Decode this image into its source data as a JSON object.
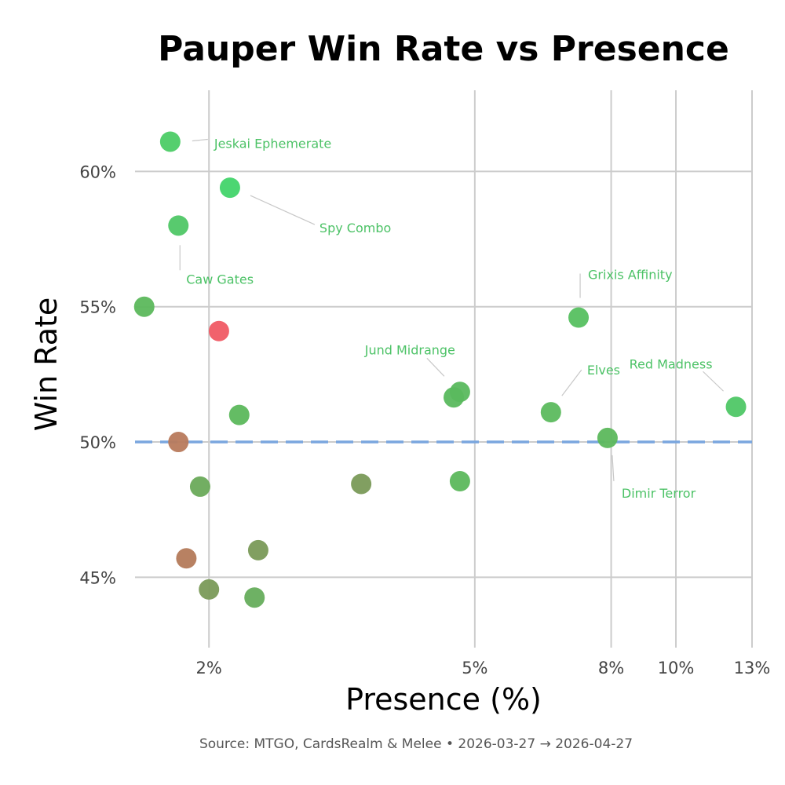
{
  "chart_data": {
    "type": "scatter",
    "title": "Pauper Win Rate vs Presence",
    "xlabel": "Presence (%)",
    "ylabel": "Win Rate",
    "x_scale": "log",
    "xlim": [
      1.55,
      13
    ],
    "ylim": [
      42.4,
      63
    ],
    "x_ticks": [
      2,
      5,
      8,
      10,
      13
    ],
    "x_tick_labels": [
      "2%",
      "5%",
      "8%",
      "10%",
      "13%"
    ],
    "y_ticks": [
      45,
      50,
      55,
      60
    ],
    "y_tick_labels": [
      "45%",
      "50%",
      "55%",
      "60%"
    ],
    "grid": true,
    "legend": "none",
    "reference_line": {
      "y": 50,
      "style": "dashed",
      "color": "#7aa6de"
    },
    "source": "Source: MTGO, CardsRealm & Melee  •  2026-03-27 → 2026-04-27",
    "colors": {
      "label": "#4cc266",
      "leader": "#c8c8c8",
      "grid": "#cccccc"
    },
    "points": [
      {
        "x": 1.75,
        "y": 61.1,
        "color": "#4ccc66",
        "label": "Jeskai Ephemerate"
      },
      {
        "x": 2.15,
        "y": 59.4,
        "color": "#42d46a",
        "label": "Spy Combo"
      },
      {
        "x": 1.8,
        "y": 58.0,
        "color": "#4fc766",
        "label": "Caw Gates"
      },
      {
        "x": 1.6,
        "y": 55.0,
        "color": "#5cb85c",
        "label": ""
      },
      {
        "x": 2.07,
        "y": 54.1,
        "color": "#f05a64",
        "label": ""
      },
      {
        "x": 7.15,
        "y": 54.6,
        "color": "#56c060",
        "label": "Grixis Affinity"
      },
      {
        "x": 4.75,
        "y": 51.85,
        "color": "#5ab95e",
        "label": "Jund Midrange"
      },
      {
        "x": 4.65,
        "y": 51.65,
        "color": "#5ab95e",
        "label": ""
      },
      {
        "x": 6.5,
        "y": 51.1,
        "color": "#5cba5e",
        "label": "Elves"
      },
      {
        "x": 12.3,
        "y": 51.3,
        "color": "#4fc766",
        "label": "Red Madness"
      },
      {
        "x": 2.22,
        "y": 51.0,
        "color": "#5cb85c",
        "label": ""
      },
      {
        "x": 7.9,
        "y": 50.15,
        "color": "#5cb85c",
        "label": "Dimir Terror"
      },
      {
        "x": 1.8,
        "y": 50.0,
        "color": "#b87a5c",
        "label": ""
      },
      {
        "x": 1.94,
        "y": 48.35,
        "color": "#6aaa5a",
        "label": ""
      },
      {
        "x": 3.38,
        "y": 48.45,
        "color": "#7a9a58",
        "label": ""
      },
      {
        "x": 4.75,
        "y": 48.55,
        "color": "#5cb85c",
        "label": ""
      },
      {
        "x": 2.37,
        "y": 46.0,
        "color": "#7a9a58",
        "label": ""
      },
      {
        "x": 1.85,
        "y": 45.7,
        "color": "#b47a5a",
        "label": ""
      },
      {
        "x": 2.0,
        "y": 44.55,
        "color": "#7a9a58",
        "label": ""
      },
      {
        "x": 2.34,
        "y": 44.25,
        "color": "#66ad5c",
        "label": ""
      }
    ]
  }
}
